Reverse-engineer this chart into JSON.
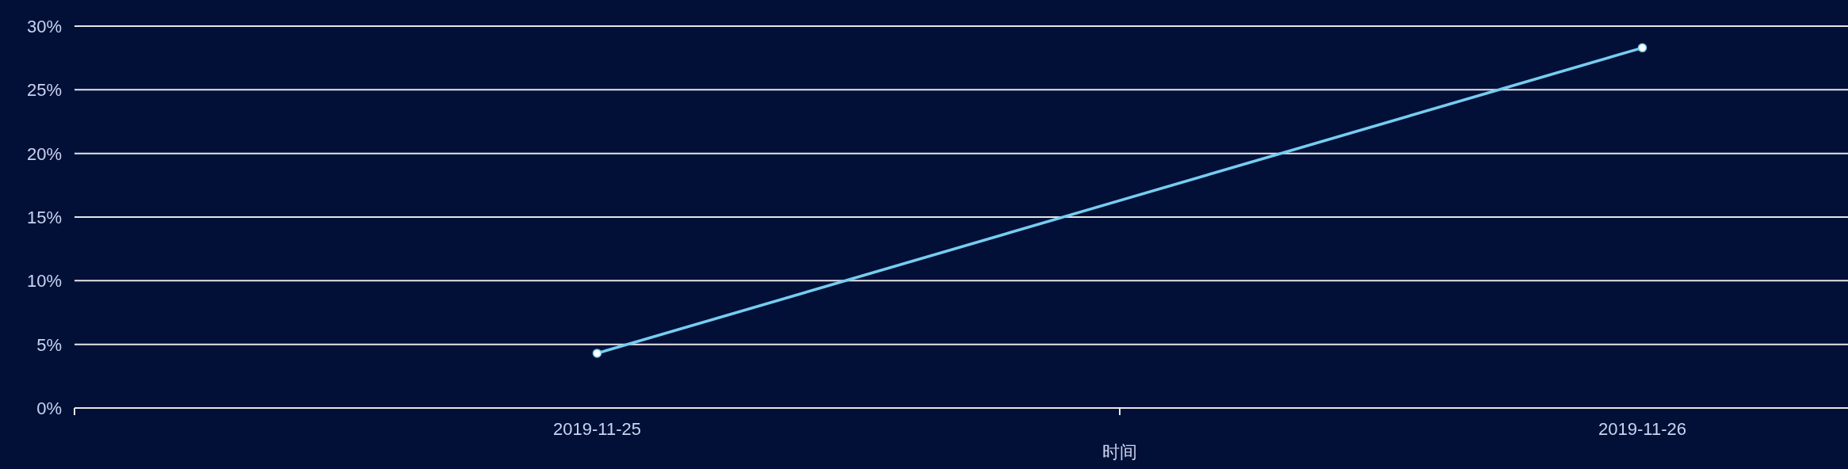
{
  "chart_data": {
    "type": "line",
    "xlabel": "时间",
    "categories": [
      "2019-11-25",
      "2019-11-26"
    ],
    "series": [
      {
        "color": "#76cdf0",
        "values": [
          4.3,
          28.3
        ]
      }
    ],
    "ylim": [
      0,
      30
    ],
    "yticks": [
      {
        "value": 0,
        "label": "0%"
      },
      {
        "value": 5,
        "label": "5%"
      },
      {
        "value": 10,
        "label": "10%"
      },
      {
        "value": 15,
        "label": "15%"
      },
      {
        "value": 20,
        "label": "20%"
      },
      {
        "value": 25,
        "label": "25%"
      },
      {
        "value": 30,
        "label": "30%"
      }
    ],
    "grid": "y",
    "marker": "circle"
  }
}
